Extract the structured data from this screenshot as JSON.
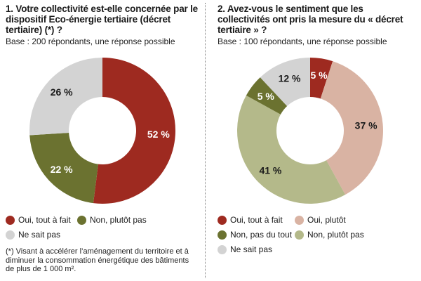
{
  "colors": {
    "oui_tout_a_fait": "#9e2a20",
    "non_plutot_pas_1": "#6b7230",
    "ne_sait_pas": "#d3d3d3",
    "oui_plutot": "#d9b3a3",
    "non_pas_du_tout": "#6b7230",
    "non_plutot_pas_2": "#b4b98a"
  },
  "chart_data": [
    {
      "type": "pie",
      "title": "1. Votre collectivité est-elle concernée par le dispositif Eco-énergie tertiaire (décret tertiaire) (*) ?",
      "subtitle": "Base : 200 répondants, une réponse possible",
      "slices": [
        {
          "name": "Oui, tout à fait",
          "value": 52,
          "label": "52 %",
          "color": "#9e2a20"
        },
        {
          "name": "Non, plutôt pas",
          "value": 22,
          "label": "22 %",
          "color": "#6b7230"
        },
        {
          "name": "Ne sait pas",
          "value": 26,
          "label": "26 %",
          "color": "#d3d3d3"
        }
      ],
      "footnote": "(*) Visant à accélérer l’aménagement du territoire et à diminuer la consommation énergétique des bâtiments de plus de 1 000 m².",
      "legend_position": "bottom"
    },
    {
      "type": "pie",
      "title": "2. Avez-vous le sentiment que les collectivités ont pris la mesure du « décret tertiaire » ?",
      "subtitle": "Base : 100 répondants, une réponse possible",
      "slices": [
        {
          "name": "Oui, tout à fait",
          "value": 5,
          "label": "5 %",
          "color": "#9e2a20"
        },
        {
          "name": "Oui, plutôt",
          "value": 37,
          "label": "37 %",
          "color": "#d9b3a3"
        },
        {
          "name": "Non, plutôt pas",
          "value": 41,
          "label": "41 %",
          "color": "#b4b98a"
        },
        {
          "name": "Non, pas du tout",
          "value": 5,
          "label": "5 %",
          "color": "#6b7230"
        },
        {
          "name": "Ne sait pas",
          "value": 12,
          "label": "12 %",
          "color": "#d3d3d3"
        }
      ],
      "legend": [
        {
          "name": "Oui, tout à fait",
          "color": "#9e2a20"
        },
        {
          "name": "Oui, plutôt",
          "color": "#d9b3a3"
        },
        {
          "name": "Non, pas du tout",
          "color": "#6b7230"
        },
        {
          "name": "Non, plutôt pas",
          "color": "#b4b98a"
        },
        {
          "name": "Ne sait pas",
          "color": "#d3d3d3"
        }
      ],
      "legend_position": "bottom"
    }
  ]
}
